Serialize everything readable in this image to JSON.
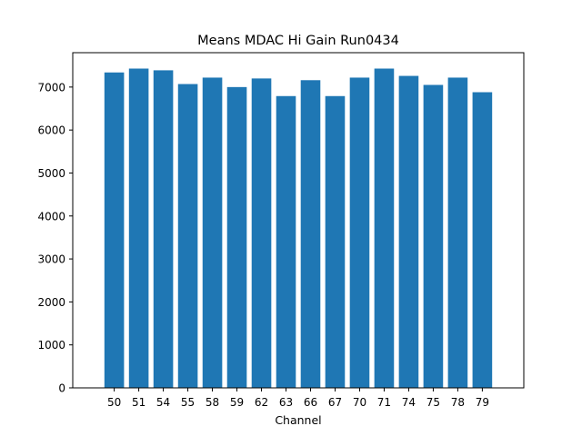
{
  "chart_data": {
    "type": "bar",
    "title": "Means MDAC Hi Gain Run0434",
    "xlabel": "Channel",
    "ylabel": "",
    "categories": [
      "50",
      "51",
      "54",
      "55",
      "58",
      "59",
      "62",
      "63",
      "66",
      "67",
      "70",
      "71",
      "74",
      "75",
      "78",
      "79"
    ],
    "values": [
      7340,
      7430,
      7390,
      7070,
      7220,
      7000,
      7200,
      6790,
      7160,
      6790,
      7220,
      7430,
      7260,
      7050,
      7220,
      6880
    ],
    "ylim": [
      0,
      7800
    ],
    "yticks": [
      0,
      1000,
      2000,
      3000,
      4000,
      5000,
      6000,
      7000
    ],
    "bar_color": "#1f77b4",
    "grid": false,
    "legend": "none"
  }
}
